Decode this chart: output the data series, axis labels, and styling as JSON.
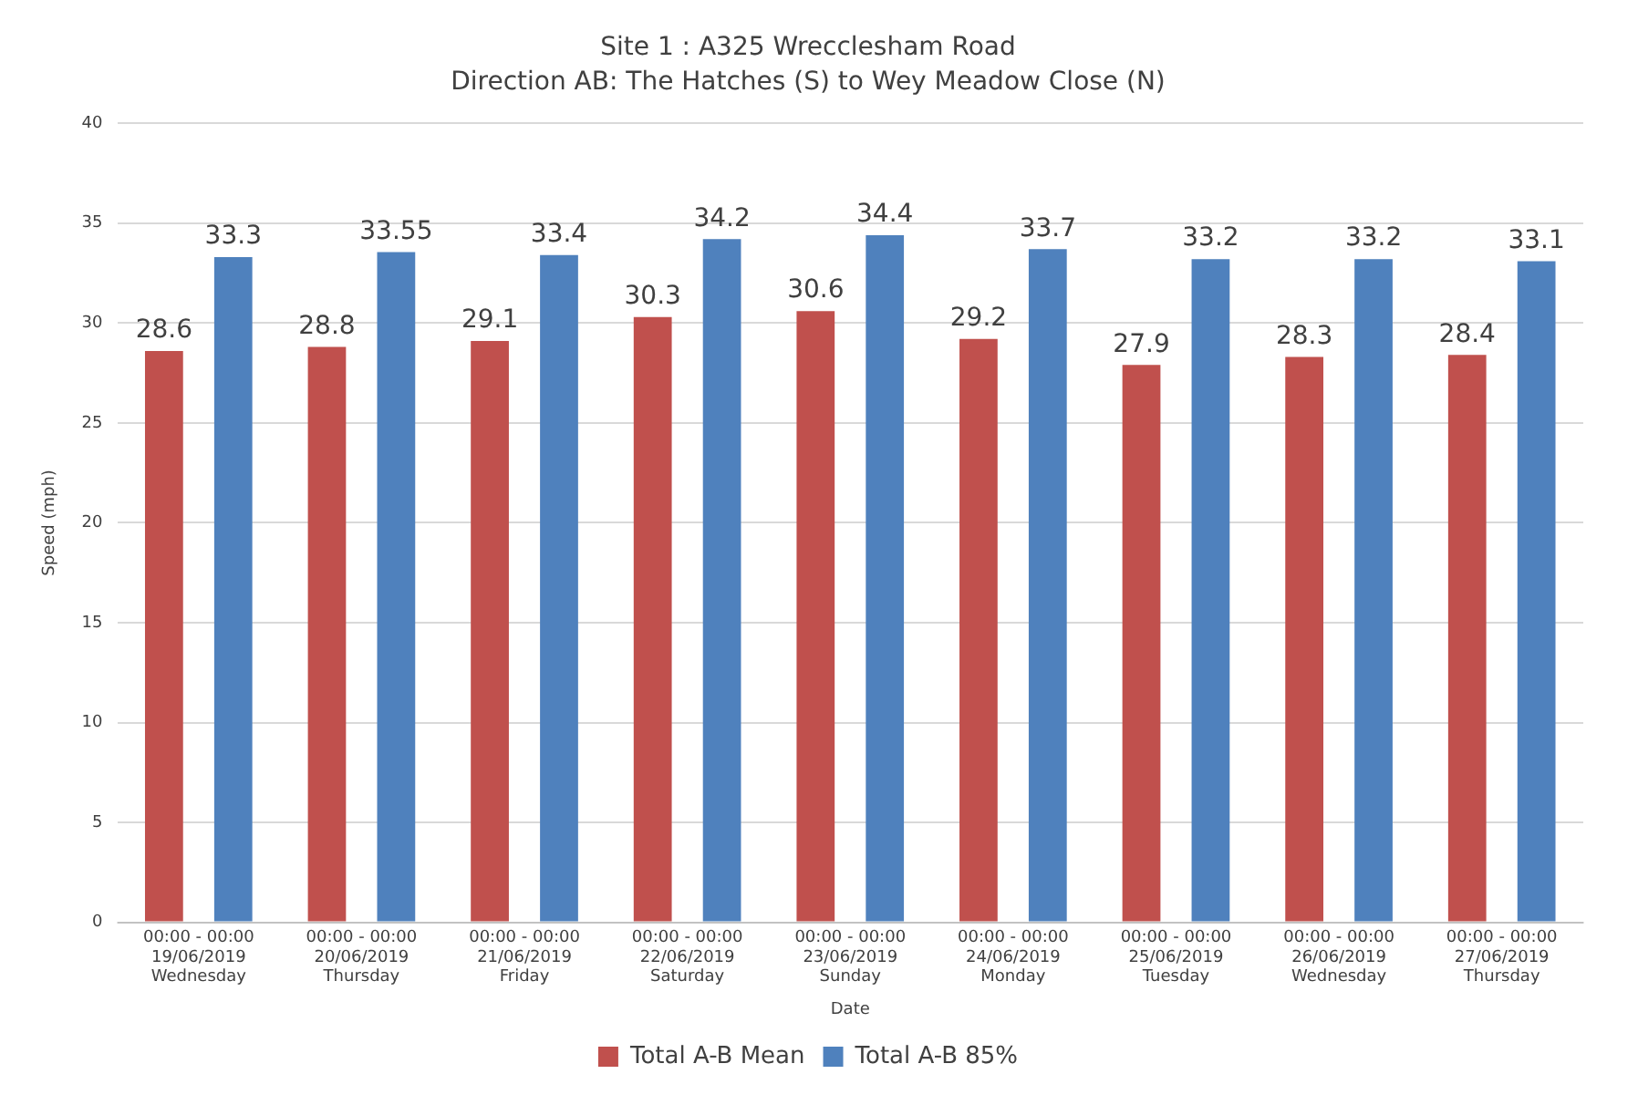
{
  "chart_data": {
    "type": "bar",
    "title": "Site 1 : A325 Wrecclesham Road",
    "subtitle": "Direction AB: The Hatches (S) to Wey Meadow Close (N)",
    "xlabel": "Date",
    "ylabel": "Speed (mph)",
    "categories": [
      "00:00 - 00:00\n19/06/2019\nWednesday",
      "00:00 - 00:00\n20/06/2019\nThursday",
      "00:00 - 00:00\n21/06/2019\nFriday",
      "00:00 - 00:00\n22/06/2019\nSaturday",
      "00:00 - 00:00\n23/06/2019\nSunday",
      "00:00 - 00:00\n24/06/2019\nMonday",
      "00:00 - 00:00\n25/06/2019\nTuesday",
      "00:00 - 00:00\n26/06/2019\nWednesday",
      "00:00 - 00:00\n27/06/2019\nThursday"
    ],
    "series": [
      {
        "name": "Total A-B Mean",
        "color": "#c0504d",
        "values": [
          28.6,
          28.8,
          29.1,
          30.3,
          30.6,
          29.2,
          27.9,
          28.3,
          28.4
        ]
      },
      {
        "name": "Total A-B 85%",
        "color": "#4f81bd",
        "values": [
          33.3,
          33.55,
          33.4,
          34.2,
          34.4,
          33.7,
          33.2,
          33.2,
          33.1
        ]
      }
    ],
    "ylim": [
      0,
      40
    ],
    "yticks": [
      0,
      5,
      10,
      15,
      20,
      25,
      30,
      35,
      40
    ],
    "grid": "y",
    "legend": "bottom",
    "data_labels": true
  }
}
